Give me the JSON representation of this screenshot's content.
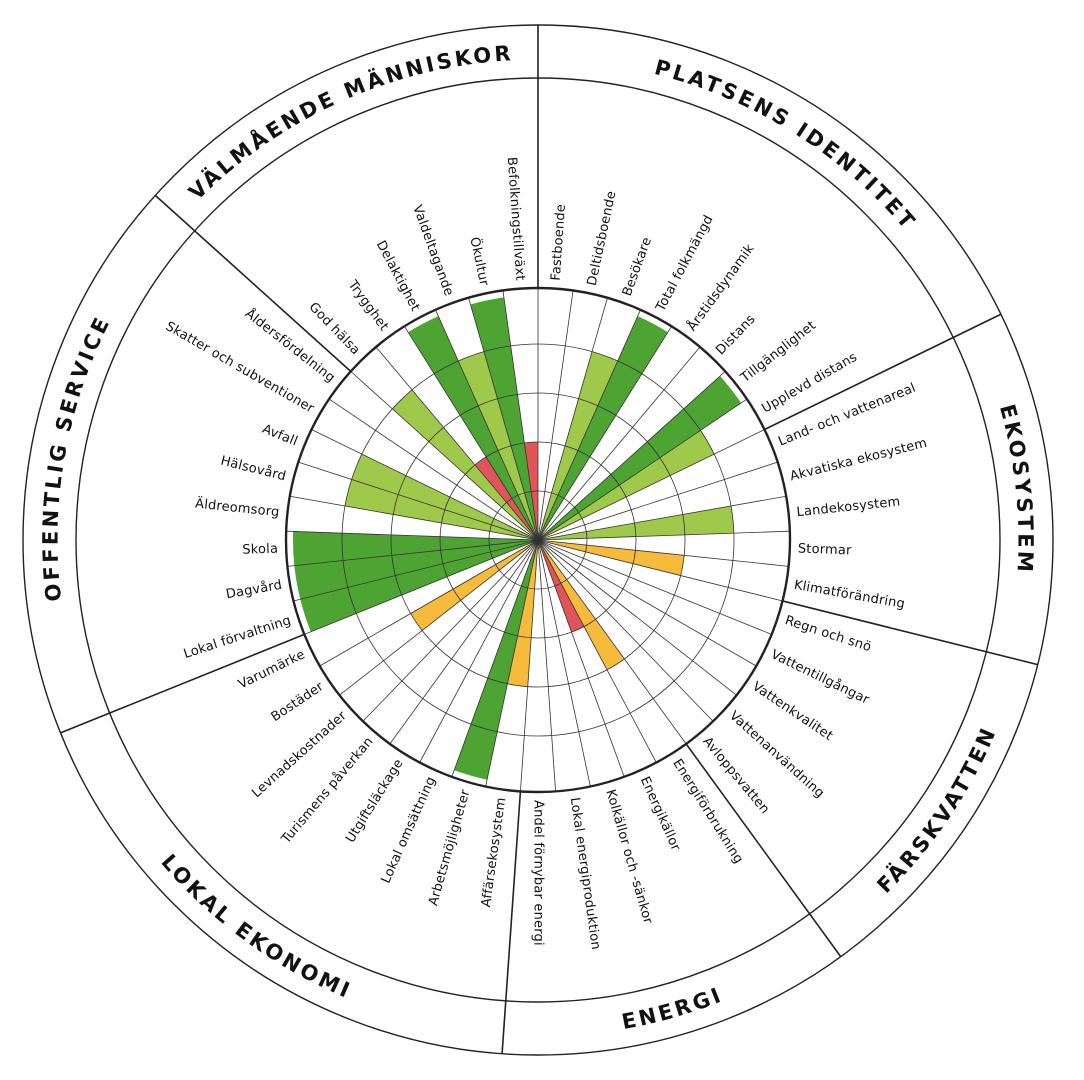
{
  "colors": {
    "dark_green": "#4ea432",
    "light_green": "#9fc94a",
    "yellow": "#f7bb3c",
    "red": "#e0545a",
    "line": "#222222"
  },
  "chart_data": {
    "type": "polar-bar",
    "rlim": [
      0,
      5
    ],
    "categories": [
      {
        "name": "PLATSENS IDENTITET",
        "indicators": [
          {
            "label": "Fastboende",
            "value": 0,
            "color": "none"
          },
          {
            "label": "Deltidsboende",
            "value": 0,
            "color": "none"
          },
          {
            "label": "Besökare",
            "value": 4,
            "color": "light_green"
          },
          {
            "label": "Total folkmängd",
            "value": 5,
            "color": "dark_green"
          },
          {
            "label": "Årstidsdynamik",
            "value": 0,
            "color": "none"
          },
          {
            "label": "Distans",
            "value": 0,
            "color": "none"
          },
          {
            "label": "Tillgänglighet",
            "value": 5,
            "color": "dark_green"
          },
          {
            "label": "Upplevd distans",
            "value": 4,
            "color": "light_green"
          }
        ]
      },
      {
        "name": "EKOSYSTEM",
        "indicators": [
          {
            "label": "Land- och vattenareal",
            "value": 0,
            "color": "none"
          },
          {
            "label": "Akvatiska ekosystem",
            "value": 0,
            "color": "none"
          },
          {
            "label": "Landekosystem",
            "value": 4,
            "color": "light_green"
          },
          {
            "label": "Stormar",
            "value": 0,
            "color": "none"
          },
          {
            "label": "Klimatförändring",
            "value": 3,
            "color": "yellow"
          }
        ]
      },
      {
        "name": "FÄRSKVATTEN",
        "indicators": [
          {
            "label": "Regn och snö",
            "value": 0,
            "color": "none"
          },
          {
            "label": "Vattentillgångar",
            "value": 0,
            "color": "none"
          },
          {
            "label": "Vattenkvalitet",
            "value": 0,
            "color": "none"
          },
          {
            "label": "Vattenanvändning",
            "value": 0,
            "color": "none"
          },
          {
            "label": "Avloppsvatten",
            "value": 0,
            "color": "none"
          }
        ]
      },
      {
        "name": "ENERGI",
        "indicators": [
          {
            "label": "Energiförbrukning",
            "value": 3,
            "color": "yellow"
          },
          {
            "label": "Energikällor",
            "value": 2,
            "color": "red"
          },
          {
            "label": "Kolkällor och -sänkor",
            "value": 0,
            "color": "none"
          },
          {
            "label": "Lokal energiproduktion",
            "value": 0,
            "color": "none"
          },
          {
            "label": "Andel förnybar energi",
            "value": 0,
            "color": "none"
          }
        ]
      },
      {
        "name": "LOKAL EKONOMI",
        "indicators": [
          {
            "label": "Affärsekosystem",
            "value": 3,
            "color": "yellow"
          },
          {
            "label": "Arbetsmöjligheter",
            "value": 5,
            "color": "dark_green"
          },
          {
            "label": "Lokal omsättning",
            "value": 0,
            "color": "none"
          },
          {
            "label": "Utgiftsläckage",
            "value": 0,
            "color": "none"
          },
          {
            "label": "Turismens påverkan",
            "value": 0,
            "color": "none"
          },
          {
            "label": "Levnadskostnader",
            "value": 0,
            "color": "none"
          },
          {
            "label": "Bostäder",
            "value": 3,
            "color": "yellow"
          },
          {
            "label": "Varumärke",
            "value": 0,
            "color": "none"
          }
        ]
      },
      {
        "name": "OFFENTLIG SERVICE",
        "indicators": [
          {
            "label": "Lokal förvaltning",
            "value": 5,
            "color": "dark_green"
          },
          {
            "label": "Dagvård",
            "value": 5,
            "color": "dark_green"
          },
          {
            "label": "Skola",
            "value": 5,
            "color": "dark_green"
          },
          {
            "label": "Äldreomsorg",
            "value": 0,
            "color": "none"
          },
          {
            "label": "Hälsovård",
            "value": 4,
            "color": "light_green"
          },
          {
            "label": "Avfall",
            "value": 4,
            "color": "light_green"
          },
          {
            "label": "Skatter och subventioner",
            "value": 0,
            "color": "none"
          },
          {
            "label": "Åldersfördelning",
            "value": 0,
            "color": "none"
          }
        ]
      },
      {
        "name": "VÄLMÅENDE MÄNNISKOR",
        "indicators": [
          {
            "label": "God hälsa",
            "value": 4,
            "color": "light_green"
          },
          {
            "label": "Trygghet",
            "value": 2,
            "color": "red"
          },
          {
            "label": "Delaktighet",
            "value": 5,
            "color": "dark_green"
          },
          {
            "label": "Valdeltagande",
            "value": 4,
            "color": "light_green"
          },
          {
            "label": "Ökultur",
            "value": 5,
            "color": "dark_green"
          },
          {
            "label": "Befolkningstillväxt",
            "value": 2,
            "color": "red"
          }
        ]
      }
    ]
  }
}
